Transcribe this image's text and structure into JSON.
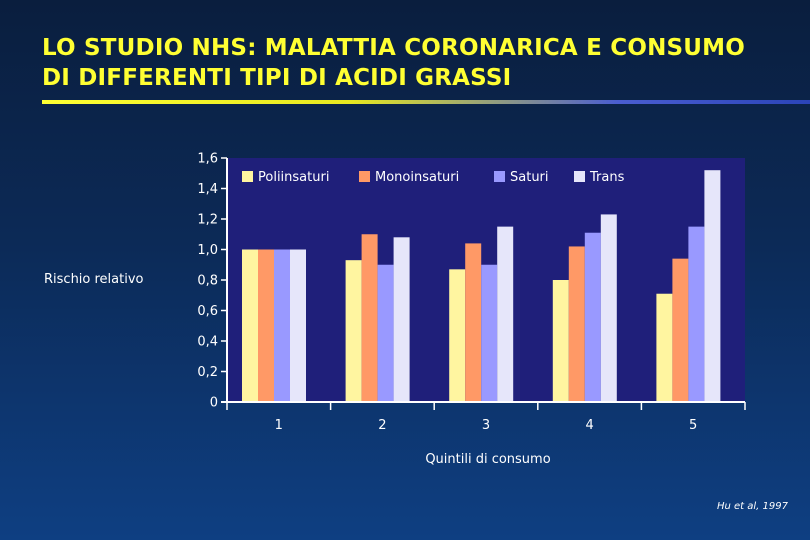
{
  "slide": {
    "title_line1": "LO STUDIO NHS: MALATTIA CORONARICA E CONSUMO",
    "title_line2": "DI DIFFERENTI TIPI DI ACIDI GRASSI",
    "source": "Hu et al, 1997"
  },
  "colors": {
    "plot_background": "#1f1f7a",
    "axis": "#ffffff",
    "title": "#ffff33"
  },
  "chart_data": {
    "type": "bar",
    "title": "",
    "xlabel": "Quintili di consumo",
    "ylabel": "Rischio relativo",
    "categories": [
      "1",
      "2",
      "3",
      "4",
      "5"
    ],
    "ylim": [
      0,
      1.6
    ],
    "yticks": [
      "0",
      "0,2",
      "0,4",
      "0,6",
      "0,8",
      "1,0",
      "1,2",
      "1,4",
      "1,6"
    ],
    "grid": false,
    "legend_position": "top-inside",
    "series": [
      {
        "name": "Poliinsaturi",
        "color": "#fff5a0",
        "values": [
          1.0,
          0.93,
          0.87,
          0.8,
          0.71
        ]
      },
      {
        "name": "Monoinsaturi",
        "color": "#ff9966",
        "values": [
          1.0,
          1.1,
          1.04,
          1.02,
          0.94
        ]
      },
      {
        "name": "Saturi",
        "color": "#9999ff",
        "values": [
          1.0,
          0.9,
          0.9,
          1.11,
          1.15
        ]
      },
      {
        "name": "Trans",
        "color": "#e6e6fa",
        "values": [
          1.0,
          1.08,
          1.15,
          1.23,
          1.52
        ]
      }
    ]
  }
}
